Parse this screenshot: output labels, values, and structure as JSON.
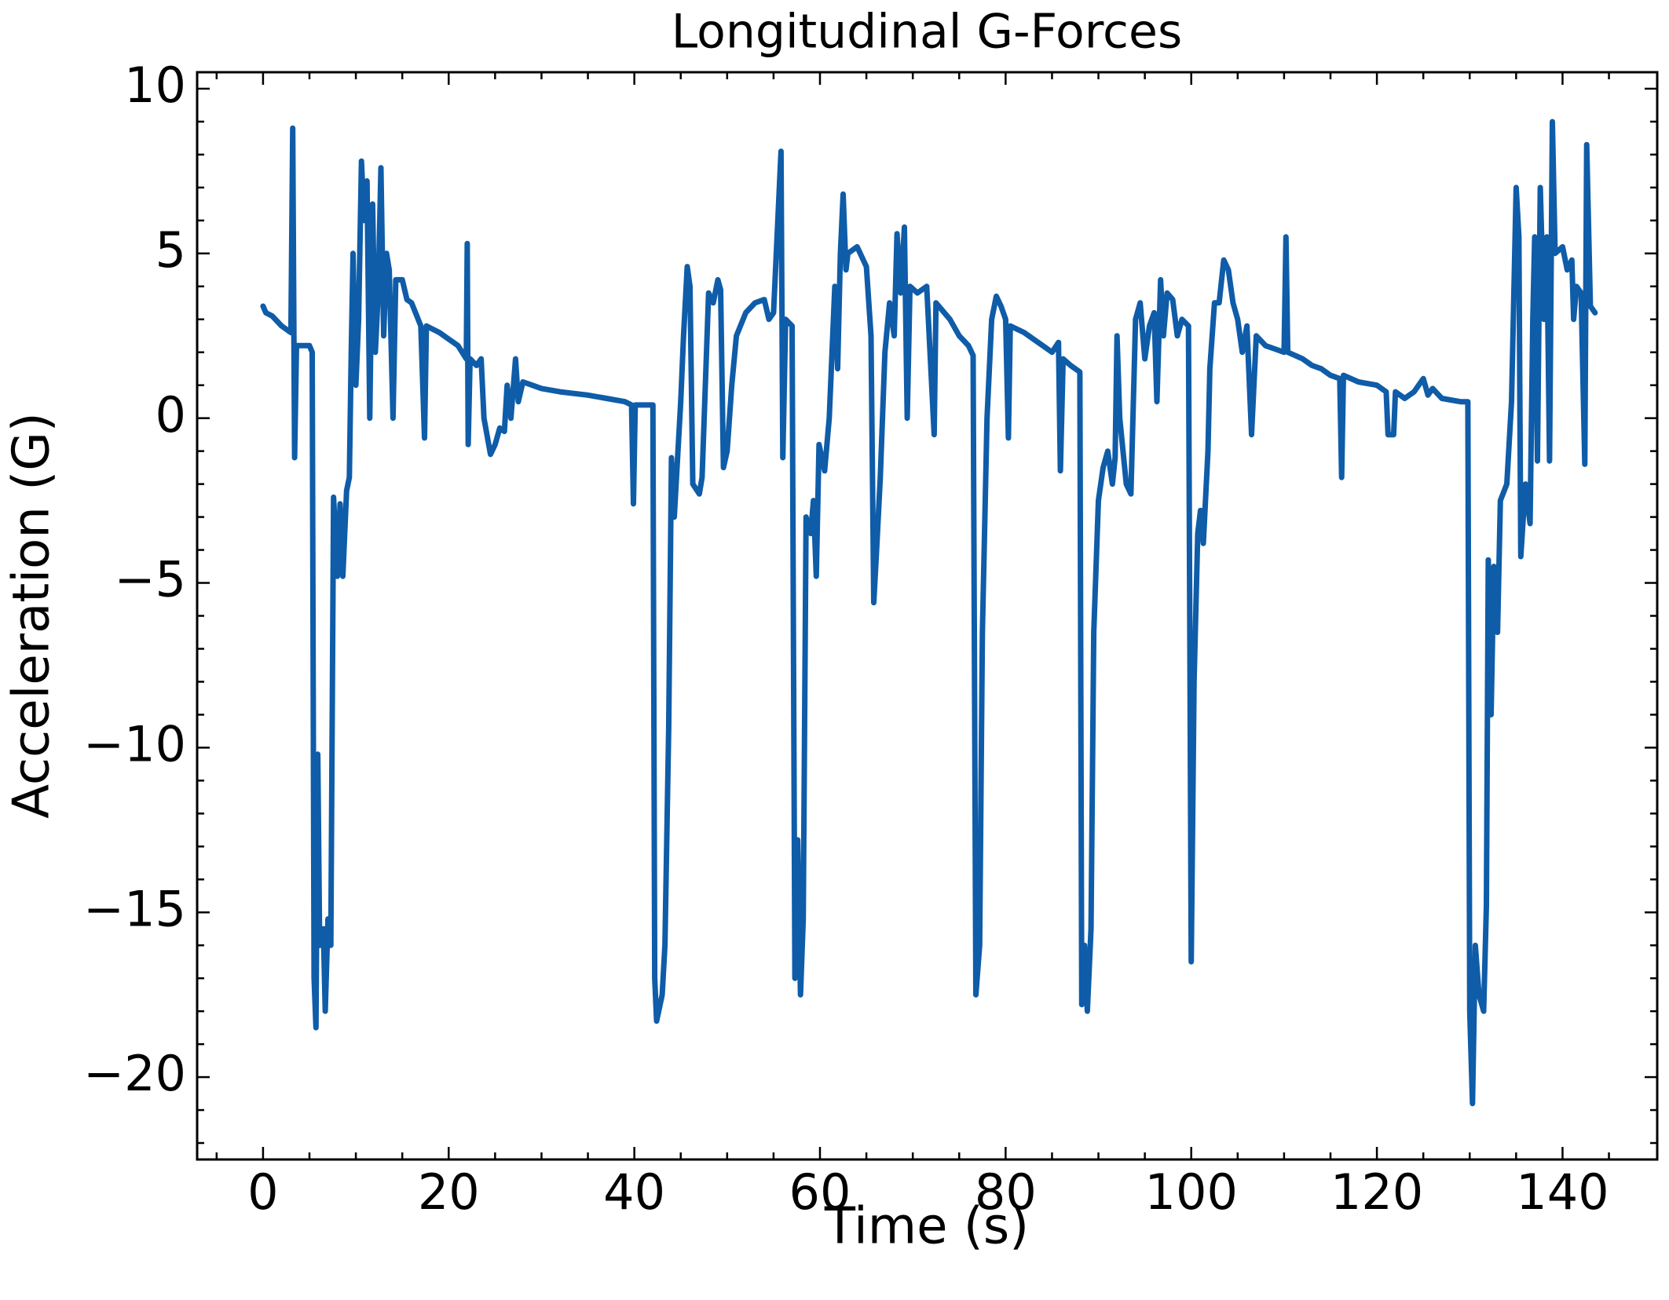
{
  "chart_data": {
    "type": "line",
    "title": "Longitudinal G-Forces",
    "x_label": "Time (s)",
    "y_label": "Acceleration (G)",
    "xlim": [
      -7.1,
      150.2
    ],
    "ylim": [
      -22.5,
      10.5
    ],
    "xticks": [
      0,
      20,
      40,
      60,
      80,
      100,
      120,
      140
    ],
    "yticks": [
      {
        "value": -20,
        "label": "−20"
      },
      {
        "value": -15,
        "label": "−15"
      },
      {
        "value": -10,
        "label": "−10"
      },
      {
        "value": -5,
        "label": "−5"
      },
      0,
      5,
      10
    ],
    "xminorticks": [
      -5,
      5,
      10,
      15,
      25,
      30,
      35,
      45,
      50,
      55,
      65,
      70,
      75,
      85,
      90,
      95,
      105,
      110,
      115,
      125,
      130,
      135,
      145
    ],
    "yminorticks": [
      -22,
      -21,
      -19,
      -18,
      -17,
      -16,
      -14,
      -13,
      -12,
      -11,
      -9,
      -8,
      -7,
      -6,
      -4,
      -3,
      -2,
      -1,
      1,
      2,
      3,
      4,
      6,
      7,
      8,
      9
    ],
    "series": [
      {
        "color": "#0f5ca8",
        "x": [
          0,
          0.3,
          1,
          2,
          3,
          3.2,
          3.4,
          3.6,
          5,
          5.3,
          5.5,
          5.7,
          5.9,
          6.1,
          6.5,
          6.7,
          7,
          7.3,
          7.6,
          8,
          8.3,
          8.6,
          9,
          9.3,
          9.5,
          9.7,
          10,
          10.3,
          10.6,
          10.9,
          11.2,
          11.5,
          11.8,
          12.1,
          12.4,
          12.7,
          13,
          13.3,
          13.6,
          14,
          14.3,
          15,
          15.5,
          16,
          17,
          17.4,
          17.6,
          19,
          20,
          21,
          21.9,
          22,
          22.1,
          22.3,
          23,
          23.5,
          23.8,
          24.5,
          25,
          25.5,
          26,
          26.3,
          26.7,
          27.2,
          27.5,
          28,
          29,
          30,
          32,
          35,
          37,
          39,
          39.7,
          39.9,
          40.1,
          42,
          42.2,
          42.4,
          43,
          43.3,
          43.7,
          44,
          44.3,
          45,
          45.3,
          45.7,
          46,
          46.3,
          47,
          47.3,
          48,
          48.5,
          49,
          49.3,
          49.6,
          50,
          50.5,
          51,
          52,
          53,
          54,
          54.5,
          55,
          55.8,
          56,
          56.3,
          57,
          57.3,
          57.6,
          57.9,
          58.2,
          58.5,
          59,
          59.3,
          59.6,
          59.9,
          60.5,
          61,
          61.6,
          61.9,
          62.2,
          62.5,
          62.8,
          63,
          64,
          65,
          65.5,
          65.8,
          66.1,
          66.5,
          67,
          67.5,
          68,
          68.3,
          68.7,
          69.1,
          69.4,
          69.7,
          70.5,
          71.5,
          72.3,
          72.5,
          74,
          75,
          76,
          76.5,
          76.8,
          77.2,
          77.5,
          78,
          78.5,
          79,
          79.5,
          80,
          80.3,
          80.5,
          82,
          83,
          84,
          85,
          85.7,
          85.9,
          86.2,
          87,
          88,
          88.2,
          88.5,
          88.8,
          89.2,
          89.5,
          90,
          90.5,
          91,
          91.5,
          91.8,
          92,
          92.3,
          93,
          93.5,
          94,
          94.5,
          95,
          95.5,
          96,
          96.3,
          96.7,
          97,
          97.4,
          98,
          98.5,
          99,
          99.7,
          100,
          100.3,
          100.7,
          101,
          101.3,
          101.8,
          102,
          102.5,
          103,
          103.5,
          104,
          104.5,
          105,
          105.5,
          106,
          106.5,
          107,
          108,
          109,
          110,
          110.2,
          110.4,
          112,
          113,
          114,
          115,
          116,
          116.2,
          116.4,
          118,
          120,
          121,
          121.2,
          121.8,
          122,
          123,
          124,
          125,
          125.5,
          126,
          127,
          129,
          129.8,
          130,
          130.3,
          130.6,
          131,
          131.5,
          131.8,
          132,
          132.3,
          132.6,
          133,
          133.3,
          134,
          134.5,
          135,
          135.3,
          135.5,
          136,
          136.5,
          136.8,
          137,
          137.3,
          137.6,
          138,
          138.3,
          138.6,
          138.9,
          139.2,
          140,
          140.5,
          141,
          141.2,
          141.5,
          142,
          142.4,
          142.6,
          143,
          143.5
        ],
        "values": [
          3.4,
          3.2,
          3.1,
          2.8,
          2.6,
          8.8,
          -1.2,
          2.2,
          2.2,
          2.0,
          -17,
          -18.5,
          -10.2,
          -16,
          -15.5,
          -18,
          -15.2,
          -16,
          -2.4,
          -4.8,
          -2.6,
          -4.8,
          -2.2,
          -1.8,
          2.0,
          5.0,
          1.0,
          3.0,
          7.8,
          6.0,
          7.2,
          0.0,
          6.5,
          2.0,
          3.8,
          7.6,
          2.5,
          5.0,
          4.5,
          0.0,
          4.2,
          4.2,
          3.6,
          3.5,
          2.8,
          -0.6,
          2.8,
          2.6,
          2.4,
          2.2,
          1.8,
          5.3,
          -0.8,
          1.8,
          1.6,
          1.8,
          0.0,
          -1.1,
          -0.8,
          -0.3,
          -0.4,
          1.0,
          0.0,
          1.8,
          0.5,
          1.1,
          1.0,
          0.9,
          0.8,
          0.7,
          0.6,
          0.5,
          0.4,
          -2.6,
          0.4,
          0.4,
          -17,
          -18.3,
          -17.5,
          -16.0,
          -9.4,
          -1.2,
          -3.0,
          0.5,
          2.5,
          4.6,
          4.0,
          -2.0,
          -2.3,
          -1.8,
          3.8,
          3.5,
          4.2,
          3.9,
          -1.5,
          -1.0,
          1.0,
          2.5,
          3.2,
          3.5,
          3.6,
          3.0,
          3.2,
          8.1,
          -1.2,
          3.0,
          2.8,
          -17,
          -12.8,
          -17.5,
          -15.2,
          -3,
          -3.5,
          -2.5,
          -4.8,
          -0.8,
          -1.6,
          0.0,
          4.0,
          1.5,
          5.0,
          6.8,
          4.5,
          5.0,
          5.2,
          4.6,
          2.5,
          -5.6,
          -4.0,
          -1.8,
          2.0,
          3.5,
          2.5,
          5.6,
          3.8,
          5.8,
          0.0,
          4.0,
          3.8,
          4.0,
          -0.5,
          3.5,
          3.0,
          2.5,
          2.2,
          1.9,
          -17.5,
          -16,
          -6.5,
          0.0,
          3.0,
          3.7,
          3.4,
          3.0,
          -0.6,
          2.8,
          2.6,
          2.4,
          2.2,
          2.0,
          2.3,
          -1.6,
          1.8,
          1.6,
          1.4,
          -17.8,
          -16,
          -18.0,
          -15.5,
          -6.5,
          -2.5,
          -1.5,
          -1.0,
          -2.0,
          -1.2,
          2.5,
          0.0,
          -2.0,
          -2.3,
          3.0,
          3.5,
          1.8,
          2.8,
          3.2,
          0.5,
          4.2,
          2.5,
          3.8,
          3.6,
          2.5,
          3.0,
          2.8,
          -16.5,
          -8.0,
          -3.5,
          -2.8,
          -3.8,
          -1.0,
          1.5,
          3.5,
          3.5,
          4.8,
          4.5,
          3.5,
          3.0,
          2.0,
          2.8,
          -0.5,
          2.5,
          2.2,
          2.1,
          2.0,
          5.5,
          2.0,
          1.8,
          1.6,
          1.5,
          1.3,
          1.2,
          -1.8,
          1.3,
          1.1,
          1.0,
          0.8,
          -0.5,
          -0.5,
          0.8,
          0.6,
          0.8,
          1.2,
          0.7,
          0.9,
          0.6,
          0.5,
          0.5,
          -18,
          -20.8,
          -16,
          -17.5,
          -18,
          -14.8,
          -4.3,
          -9,
          -4.5,
          -6.5,
          -2.5,
          -2.0,
          0.5,
          7.0,
          5.5,
          -4.2,
          -2.0,
          -3.2,
          3.0,
          5.5,
          -1.3,
          7.0,
          3.0,
          5.5,
          -1.3,
          9.0,
          5.0,
          5.2,
          4.5,
          4.8,
          3.0,
          4.0,
          3.8,
          -1.4,
          8.3,
          3.4,
          3.2
        ]
      }
    ]
  }
}
